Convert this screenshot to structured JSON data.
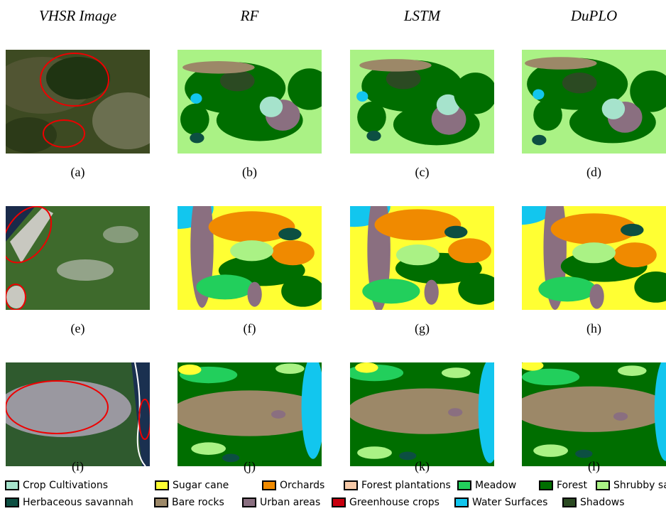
{
  "column_headers": [
    "VHSR Image",
    "RF",
    "LSTM",
    "DuPLO"
  ],
  "panels": [
    {
      "caption": "(a)"
    },
    {
      "caption": "(b)"
    },
    {
      "caption": "(c)"
    },
    {
      "caption": "(d)"
    },
    {
      "caption": "(e)"
    },
    {
      "caption": "(f)"
    },
    {
      "caption": "(g)"
    },
    {
      "caption": "(h)"
    },
    {
      "caption": "(i)"
    },
    {
      "caption": "(j)"
    },
    {
      "caption": "(k)"
    },
    {
      "caption": "(l)"
    }
  ],
  "legend": [
    {
      "label": "Crop Cultivations",
      "color": "#a6e3cc"
    },
    {
      "label": "Sugar cane",
      "color": "#ffff33"
    },
    {
      "label": "Orchards",
      "color": "#f08a00"
    },
    {
      "label": "Forest plantations",
      "color": "#f6c9a8"
    },
    {
      "label": "Meadow",
      "color": "#22cf5c"
    },
    {
      "label": "Forest",
      "color": "#006e00"
    },
    {
      "label": "Shrubby savannah",
      "color": "#aaf285"
    },
    {
      "label": "Herbaceous savannah",
      "color": "#0c4f42"
    },
    {
      "label": "Bare rocks",
      "color": "#9c8868"
    },
    {
      "label": "Urban areas",
      "color": "#8a6f80"
    },
    {
      "label": "Greenhouse crops",
      "color": "#c8000f"
    },
    {
      "label": "Water Surfaces",
      "color": "#12c6ee"
    },
    {
      "label": "Shadows",
      "color": "#2b4a22"
    }
  ]
}
